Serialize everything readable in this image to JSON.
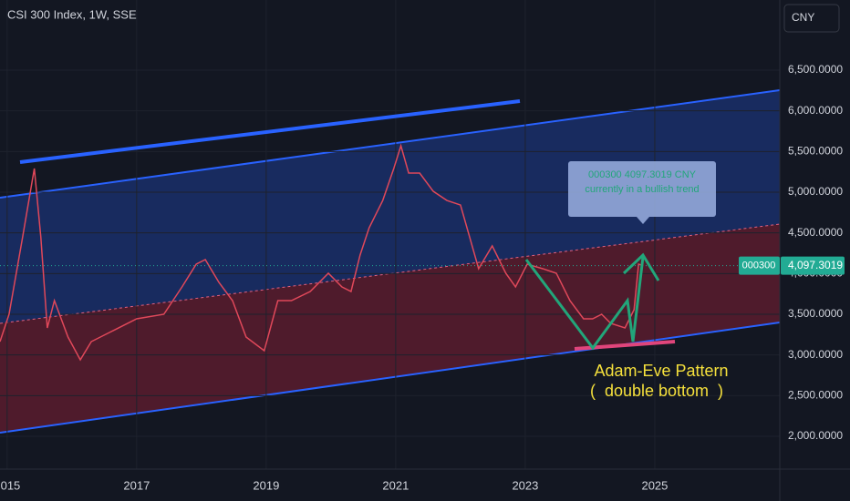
{
  "chart_data": {
    "type": "line",
    "title": "CSI 300 Index, 1W, SSE",
    "currency": "CNY",
    "xlim": [
      2014.89,
      2026.93
    ],
    "xticks": [
      2015,
      2017,
      2019,
      2021,
      2023,
      2025
    ],
    "ylim": [
      1597,
      7362
    ],
    "yticks": [
      {
        "value": 2000,
        "label": "2,000.0000"
      },
      {
        "value": 2500,
        "label": "2,500.0000"
      },
      {
        "value": 3000,
        "label": "3,000.0000"
      },
      {
        "value": 3500,
        "label": "3,500.0000"
      },
      {
        "value": 4000,
        "label": "4,000.0000"
      },
      {
        "value": 4500,
        "label": "4,500.0000"
      },
      {
        "value": 5000,
        "label": "5,000.0000"
      },
      {
        "value": 5500,
        "label": "5,500.0000"
      },
      {
        "value": 6000,
        "label": "6,000.0000"
      },
      {
        "value": 6500,
        "label": "6,500.0000"
      }
    ],
    "series": [
      {
        "name": "000300",
        "color": "#e0485a",
        "x": [
          2014.89,
          2015.03,
          2015.24,
          2015.42,
          2015.52,
          2015.62,
          2015.73,
          2015.94,
          2016.13,
          2016.3,
          2016.58,
          2017.0,
          2017.42,
          2017.7,
          2017.92,
          2018.06,
          2018.27,
          2018.48,
          2018.69,
          2018.97,
          2019.18,
          2019.39,
          2019.68,
          2019.96,
          2020.17,
          2020.31,
          2020.45,
          2020.59,
          2020.8,
          2020.97,
          2021.08,
          2021.2,
          2021.37,
          2021.58,
          2021.79,
          2022.0,
          2022.14,
          2022.28,
          2022.49,
          2022.7,
          2022.85,
          2023.03,
          2023.27,
          2023.48,
          2023.69,
          2023.9,
          2024.04,
          2024.18,
          2024.32,
          2024.54,
          2024.68,
          2024.75,
          2024.82
        ],
        "values": [
          3164,
          3500,
          4452,
          5291,
          4452,
          3332,
          3668,
          3220,
          2940,
          3164,
          3276,
          3444,
          3500,
          3836,
          4116,
          4172,
          3892,
          3668,
          3220,
          3052,
          3668,
          3668,
          3780,
          4004,
          3836,
          3780,
          4228,
          4563,
          4899,
          5291,
          5571,
          5235,
          5235,
          5011,
          4899,
          4843,
          4452,
          4060,
          4340,
          4004,
          3836,
          4116,
          4060,
          4004,
          3668,
          3444,
          3444,
          3500,
          3388,
          3332,
          3556,
          4116,
          4097.3019
        ]
      }
    ],
    "last_price": {
      "symbol": "000300",
      "value": 4097.3019,
      "label": "4,097.3019"
    },
    "annotations": {
      "tooltip_line1": "000300 4097.3019 CNY",
      "tooltip_line2": "currently in a bullish trend",
      "pattern_line1": "Adam-Eve Pattern",
      "pattern_line2": "(  double bottom  )"
    }
  }
}
